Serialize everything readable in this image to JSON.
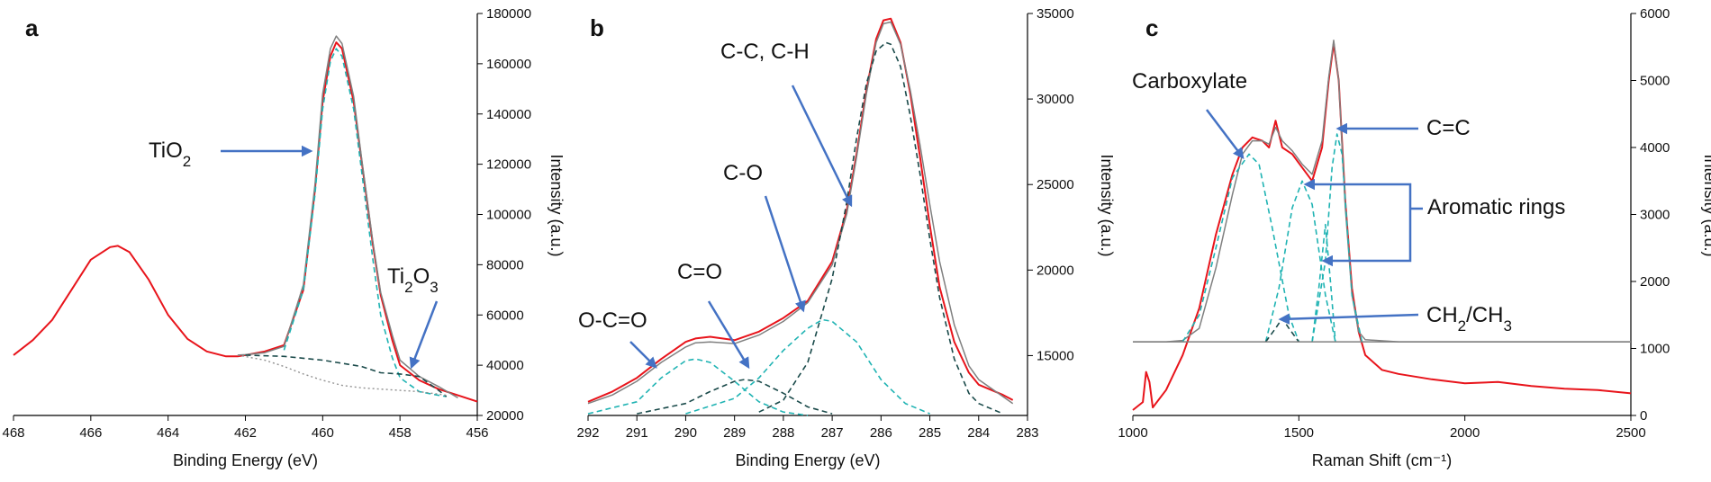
{
  "chart_data": [
    {
      "panel": "a",
      "type": "line",
      "xlabel": "Binding Energy (eV)",
      "ylabel": "Intensity (a.u.)",
      "xlim": [
        468,
        456
      ],
      "ylim": [
        20000,
        180000
      ],
      "xticks": [
        "468",
        "466",
        "464",
        "462",
        "460",
        "458",
        "456"
      ],
      "yticks": [
        "20000",
        "40000",
        "60000",
        "80000",
        "100000",
        "120000",
        "140000",
        "160000",
        "180000"
      ],
      "annotations": [
        {
          "text": "TiO",
          "sub": "2"
        },
        {
          "text": "Ti",
          "sub": "2",
          "text2": "O",
          "sub2": "3"
        }
      ],
      "series": [
        {
          "role": "measured",
          "color": "#e8141b",
          "x": [
            468,
            467.5,
            467,
            466.5,
            466,
            465.5,
            465.3,
            465,
            464.5,
            464,
            463.5,
            463,
            462.5,
            462.2,
            462,
            461.5,
            461,
            460.5,
            460.2,
            460,
            459.8,
            459.65,
            459.5,
            459.2,
            459,
            458.7,
            458.5,
            458.2,
            458,
            457.5,
            457,
            456.5,
            456
          ],
          "y": [
            44000,
            50000,
            58000,
            70000,
            82000,
            87000,
            87500,
            85000,
            74000,
            60000,
            50500,
            45500,
            43500,
            43500,
            44000,
            45500,
            48000,
            70000,
            110000,
            145000,
            163000,
            168500,
            166000,
            145000,
            122000,
            88000,
            68000,
            50000,
            40000,
            34000,
            30500,
            28000,
            25500
          ]
        },
        {
          "role": "fit-envelope",
          "color": "#808080",
          "x": [
            462.2,
            462,
            461.5,
            461,
            460.5,
            460.2,
            460,
            459.8,
            459.65,
            459.5,
            459.2,
            459,
            458.7,
            458.5,
            458.2,
            458,
            457.5,
            457,
            456.5
          ],
          "y": [
            44000,
            44200,
            45000,
            47500,
            72000,
            112000,
            148000,
            166000,
            171000,
            168000,
            147000,
            123000,
            89000,
            69000,
            52000,
            42000,
            35500,
            31500,
            27000
          ]
        },
        {
          "role": "TiO2 component",
          "color": "#1fb3b3",
          "x": [
            461,
            460.5,
            460.2,
            460,
            459.8,
            459.65,
            459.5,
            459.2,
            459,
            458.7,
            458.5,
            458.2,
            458,
            457.5,
            457,
            456.8
          ],
          "y": [
            46000,
            70000,
            108000,
            142000,
            161000,
            166000,
            163000,
            142000,
            118000,
            82000,
            60000,
            43000,
            35000,
            29500,
            28000,
            27500
          ]
        },
        {
          "role": "Ti2O3 component",
          "color": "#1a4a4a",
          "x": [
            462,
            461,
            460,
            459,
            458.5,
            458,
            457.5,
            457,
            456.8
          ],
          "y": [
            44000,
            43500,
            42000,
            39500,
            37000,
            36500,
            35500,
            30000,
            27500
          ]
        },
        {
          "role": "background",
          "color": "#909090",
          "x": [
            462.2,
            461.5,
            461,
            460.5,
            460,
            459.5,
            459,
            458.5,
            458,
            457.5,
            457,
            456.8
          ],
          "y": [
            44000,
            42000,
            39500,
            36500,
            34000,
            32000,
            31000,
            30500,
            30000,
            29500,
            28500,
            28000
          ]
        }
      ]
    },
    {
      "panel": "b",
      "type": "line",
      "xlabel": "Binding Energy (eV)",
      "ylabel": "Intensity (a.u.)",
      "xlim": [
        292,
        283
      ],
      "ylim": [
        11500,
        35000
      ],
      "xticks": [
        "292",
        "291",
        "290",
        "289",
        "288",
        "287",
        "286",
        "285",
        "284",
        "283"
      ],
      "yticks": [
        "15000",
        "20000",
        "25000",
        "30000",
        "35000"
      ],
      "annotations": [
        {
          "text": "O-C=O"
        },
        {
          "text": "C=O"
        },
        {
          "text": "C-O"
        },
        {
          "text": "C-C, C-H"
        }
      ],
      "series": [
        {
          "role": "measured",
          "color": "#e8141b",
          "x": [
            292,
            291.5,
            291,
            290.5,
            290,
            289.8,
            289.5,
            289,
            288.5,
            288,
            287.5,
            287,
            286.7,
            286.5,
            286.3,
            286.1,
            285.95,
            285.8,
            285.6,
            285.4,
            285.2,
            285,
            284.8,
            284.5,
            284.2,
            284,
            283.5,
            283.3
          ],
          "y": [
            12300,
            12900,
            13700,
            14800,
            15800,
            16000,
            16100,
            15900,
            16400,
            17200,
            18200,
            20500,
            23500,
            26800,
            30500,
            33500,
            34600,
            34700,
            33300,
            30300,
            26600,
            22600,
            19000,
            15800,
            14000,
            13300,
            12700,
            12400
          ]
        },
        {
          "role": "fit-envelope",
          "color": "#808080",
          "x": [
            292,
            291.5,
            291,
            290.5,
            290,
            289.8,
            289.5,
            289,
            288.5,
            288,
            287.5,
            287,
            286.7,
            286.5,
            286.3,
            286.1,
            285.95,
            285.8,
            285.6,
            285.4,
            285.2,
            285,
            284.8,
            284.5,
            284.2,
            284,
            283.5,
            283.3
          ],
          "y": [
            12200,
            12700,
            13500,
            14600,
            15500,
            15750,
            15800,
            15700,
            16200,
            17000,
            18100,
            20300,
            23300,
            26600,
            30300,
            33300,
            34400,
            34500,
            33200,
            30500,
            27300,
            23800,
            20500,
            16800,
            14400,
            13600,
            12600,
            12200
          ]
        },
        {
          "role": "O-C=O component",
          "color": "#1fb3b3",
          "x": [
            292,
            291,
            290.5,
            290,
            289.8,
            289.5,
            289,
            288.5,
            288,
            287.5
          ],
          "y": [
            11600,
            12300,
            13700,
            14700,
            14800,
            14600,
            13500,
            12300,
            11700,
            11500
          ]
        },
        {
          "role": "C=O component",
          "color": "#1a4a4a",
          "x": [
            291,
            290,
            289.5,
            289,
            288.8,
            288.5,
            288,
            287.5,
            287
          ],
          "y": [
            11600,
            12200,
            12900,
            13500,
            13600,
            13500,
            12800,
            12000,
            11600
          ]
        },
        {
          "role": "C-O component",
          "color": "#1fb3b3",
          "x": [
            290,
            289,
            288.5,
            288,
            287.5,
            287.2,
            287,
            286.5,
            286,
            285.5,
            285
          ],
          "y": [
            11600,
            12500,
            13700,
            15300,
            16600,
            17100,
            17000,
            15800,
            13600,
            12200,
            11600
          ]
        },
        {
          "role": "C-C, C-H component",
          "color": "#1a4a4a",
          "x": [
            288.5,
            288,
            287.5,
            287,
            286.7,
            286.5,
            286.3,
            286.1,
            285.9,
            285.8,
            285.6,
            285.4,
            285.2,
            285,
            284.8,
            284.5,
            284.2,
            284,
            283.5
          ],
          "y": [
            11700,
            12400,
            14600,
            19500,
            24000,
            27700,
            30900,
            32800,
            33300,
            33200,
            31900,
            29000,
            25600,
            21800,
            18400,
            14800,
            12800,
            12200,
            11600
          ]
        }
      ]
    },
    {
      "panel": "c",
      "type": "line",
      "xlabel": "Raman Shift (cm⁻¹)",
      "ylabel": "Intensity (a.u.)",
      "xlim": [
        1000,
        2500
      ],
      "ylim": [
        0,
        6000
      ],
      "xticks": [
        "1000",
        "1500",
        "2000",
        "2500"
      ],
      "yticks": [
        "0",
        "1000",
        "2000",
        "3000",
        "4000",
        "5000",
        "6000"
      ],
      "annotations": [
        {
          "text": "Carboxylate"
        },
        {
          "text": "C=C"
        },
        {
          "text": "Aromatic rings"
        },
        {
          "text": "CH",
          "sub": "2",
          "text2": "/CH",
          "sub2": "3"
        }
      ],
      "series": [
        {
          "role": "measured",
          "color": "#e8141b",
          "x": [
            1000,
            1030,
            1040,
            1050,
            1060,
            1100,
            1150,
            1200,
            1250,
            1300,
            1330,
            1360,
            1390,
            1410,
            1430,
            1450,
            1480,
            1510,
            1540,
            1570,
            1590,
            1605,
            1620,
            1640,
            1660,
            1680,
            1700,
            1750,
            1800,
            1900,
            2000,
            2100,
            2200,
            2300,
            2400,
            2500
          ],
          "y": [
            80,
            200,
            650,
            500,
            120,
            380,
            900,
            1600,
            2700,
            3600,
            4000,
            4150,
            4100,
            4000,
            4400,
            4000,
            3900,
            3700,
            3500,
            4000,
            5000,
            5550,
            5000,
            3200,
            1900,
            1250,
            900,
            680,
            620,
            540,
            480,
            500,
            440,
            400,
            380,
            330
          ]
        },
        {
          "role": "fit-envelope",
          "color": "#808080",
          "x": [
            1000,
            1100,
            1150,
            1200,
            1250,
            1300,
            1330,
            1360,
            1390,
            1410,
            1430,
            1450,
            1480,
            1510,
            1540,
            1570,
            1590,
            1605,
            1620,
            1640,
            1660,
            1680,
            1700,
            1800,
            2000,
            2500
          ],
          "y": [
            1100,
            1100,
            1120,
            1300,
            2200,
            3300,
            3900,
            4100,
            4100,
            4050,
            4300,
            4100,
            3950,
            3750,
            3600,
            4100,
            5050,
            5600,
            5000,
            3100,
            1800,
            1250,
            1130,
            1100,
            1100,
            1100
          ]
        },
        {
          "role": "Carboxylate component",
          "color": "#1fb3b3",
          "x": [
            1150,
            1200,
            1250,
            1300,
            1350,
            1380,
            1420,
            1470,
            1500
          ],
          "y": [
            1100,
            1500,
            2500,
            3550,
            3900,
            3750,
            2800,
            1500,
            1100
          ]
        },
        {
          "role": "Aromatic rings component",
          "color": "#1fb3b3",
          "x": [
            1400,
            1440,
            1480,
            1510,
            1540,
            1580,
            1610
          ],
          "y": [
            1100,
            1900,
            3100,
            3500,
            3150,
            1800,
            1100
          ]
        },
        {
          "role": "C=C component",
          "color": "#1fb3b3",
          "x": [
            1540,
            1580,
            1600,
            1615,
            1630,
            1660,
            1690
          ],
          "y": [
            1100,
            2300,
            3700,
            4200,
            3900,
            1800,
            1100
          ]
        },
        {
          "role": "Aromatic rings component",
          "color": "#1fb3b3",
          "x": [
            1540,
            1560,
            1580,
            1595,
            1610
          ],
          "y": [
            1100,
            1900,
            2850,
            2000,
            1100
          ]
        },
        {
          "role": "CH2/CH3 component",
          "color": "#1a4a4a",
          "x": [
            1400,
            1430,
            1450,
            1470,
            1500
          ],
          "y": [
            1100,
            1300,
            1450,
            1300,
            1100
          ]
        },
        {
          "role": "baseline",
          "color": "#808080",
          "x": [
            1000,
            2500
          ],
          "y": [
            1100,
            1100
          ]
        }
      ]
    }
  ]
}
